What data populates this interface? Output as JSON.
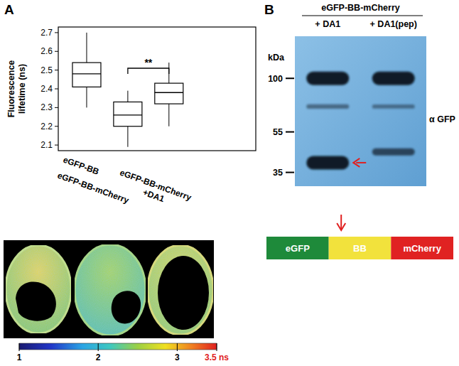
{
  "chart_data": [
    {
      "type": "box",
      "categories": [
        "eGFP-BB",
        "eGFP-BB-mCherry",
        "eGFP-BB-mCherry\n+DA1"
      ],
      "ylabel": [
        "Fluorescence",
        "lifetime (ns)"
      ],
      "boxes": [
        {
          "whisker_low": 2.3,
          "q1": 2.41,
          "median": 2.48,
          "q3": 2.54,
          "whisker_high": 2.7
        },
        {
          "whisker_low": 2.09,
          "q1": 2.2,
          "median": 2.26,
          "q3": 2.33,
          "whisker_high": 2.39
        },
        {
          "whisker_low": 2.2,
          "q1": 2.32,
          "median": 2.38,
          "q3": 2.43,
          "whisker_high": 2.54
        }
      ],
      "ylim": [
        2.07,
        2.73
      ],
      "yticks": [
        2.1,
        2.2,
        2.3,
        2.4,
        2.5,
        2.6,
        2.7
      ],
      "annotations": [
        {
          "text": "**",
          "between": [
            1,
            2
          ],
          "y": 2.51
        }
      ],
      "color": "#ffffff"
    },
    {
      "type": "blot",
      "title": "eGFP-BB-mCherry",
      "categories": [
        "+ DA1",
        "+ DA1(pep)"
      ],
      "ylabel": "kDa",
      "log": "y",
      "ylim": [
        30,
        160
      ],
      "yticks": [
        35,
        55,
        100
      ],
      "annotation": "α GFP",
      "bands": [
        [
          {
            "kda": 100,
            "intensity": 1.0
          },
          {
            "kda": 73,
            "intensity": 0.3
          },
          {
            "kda": 39,
            "intensity": 1.0
          }
        ],
        [
          {
            "kda": 100,
            "intensity": 1.0
          },
          {
            "kda": 73,
            "intensity": 0.25
          },
          {
            "kda": 44,
            "intensity": 0.6
          }
        ]
      ],
      "marked_band": {
        "lane": 0,
        "kda": 39
      },
      "color": "#8cc0e6"
    }
  ],
  "figure": {
    "panels": [
      "A",
      "B"
    ],
    "flim_colorbar": {
      "range": [
        1,
        3.5
      ],
      "ticks": [
        1,
        2,
        3,
        {
          "value": 3.5,
          "label": "3.5 ns"
        }
      ]
    },
    "construct": {
      "segments": [
        {
          "label": "eGFP",
          "color": "#1e8a3a"
        },
        {
          "label": "BB",
          "color": "#f2e23c"
        },
        {
          "label": "mCherry",
          "color": "#e02222"
        }
      ]
    }
  }
}
